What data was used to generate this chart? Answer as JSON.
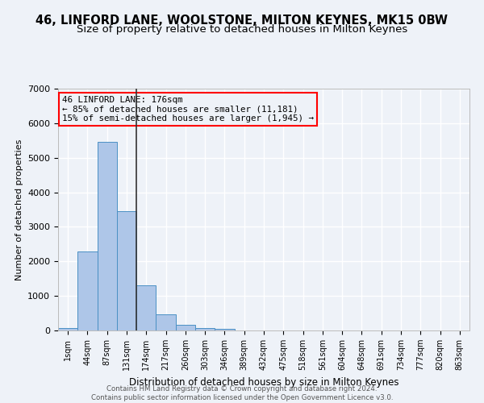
{
  "title_line1": "46, LINFORD LANE, WOOLSTONE, MILTON KEYNES, MK15 0BW",
  "title_line2": "Size of property relative to detached houses in Milton Keynes",
  "xlabel": "Distribution of detached houses by size in Milton Keynes",
  "ylabel": "Number of detached properties",
  "footer_line1": "Contains HM Land Registry data © Crown copyright and database right 2024.",
  "footer_line2": "Contains public sector information licensed under the Open Government Licence v3.0.",
  "bar_labels": [
    "1sqm",
    "44sqm",
    "87sqm",
    "131sqm",
    "174sqm",
    "217sqm",
    "260sqm",
    "303sqm",
    "346sqm",
    "389sqm",
    "432sqm",
    "475sqm",
    "518sqm",
    "561sqm",
    "604sqm",
    "648sqm",
    "691sqm",
    "734sqm",
    "777sqm",
    "820sqm",
    "863sqm"
  ],
  "bar_values": [
    75,
    2280,
    5470,
    3450,
    1310,
    470,
    155,
    80,
    45,
    0,
    0,
    0,
    0,
    0,
    0,
    0,
    0,
    0,
    0,
    0,
    0
  ],
  "bar_color": "#aec6e8",
  "bar_edge_color": "#4a90c4",
  "vline_pos": 3.5,
  "vline_color": "#333333",
  "ylim": [
    0,
    7000
  ],
  "yticks": [
    0,
    1000,
    2000,
    3000,
    4000,
    5000,
    6000,
    7000
  ],
  "annotation_line1": "46 LINFORD LANE: 176sqm",
  "annotation_line2": "← 85% of detached houses are smaller (11,181)",
  "annotation_line3": "15% of semi-detached houses are larger (1,945) →",
  "bg_color": "#eef2f8",
  "grid_color": "#ffffff",
  "title1_fontsize": 10.5,
  "title2_fontsize": 9.5,
  "ann_fontsize": 7.8
}
